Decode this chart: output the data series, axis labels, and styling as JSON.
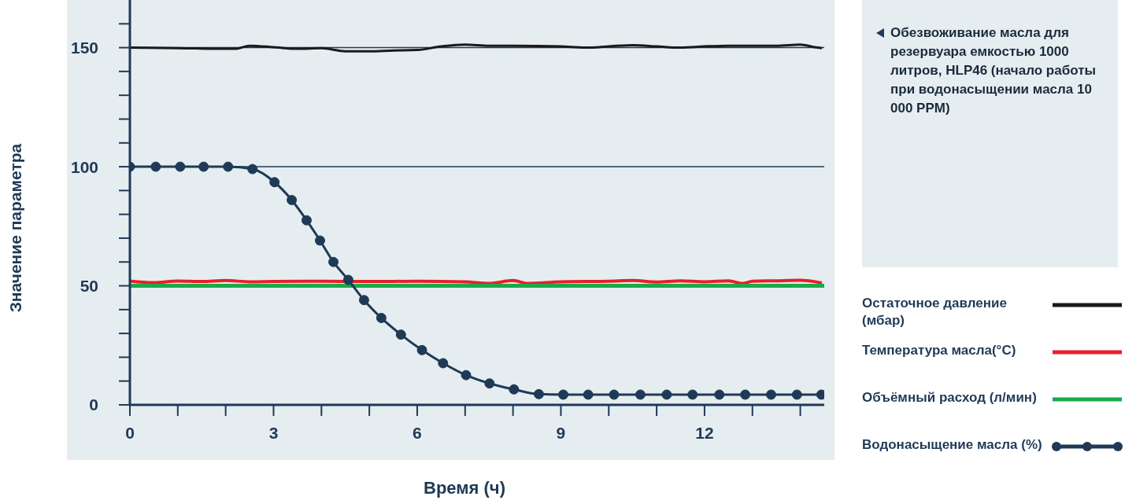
{
  "chart_data": {
    "type": "line",
    "xlabel": "Время (ч)",
    "ylabel": "Значение параметра",
    "annotations": [
      "Обезвоживание масла для резервуара емкостью 1000 литров, HLP46 (начало работы при водонасыщении масла 10 000 PPM)"
    ],
    "xlim": [
      0,
      14.5
    ],
    "xticks": [
      0,
      {
        "value": 1,
        "label": null
      },
      {
        "value": 2,
        "label": null
      },
      3,
      {
        "value": 4,
        "label": null
      },
      {
        "value": 5,
        "label": null
      },
      6,
      {
        "value": 7,
        "label": null
      },
      {
        "value": 8,
        "label": null
      },
      9,
      {
        "value": 10,
        "label": null
      },
      {
        "value": 11,
        "label": null
      },
      12,
      {
        "value": 13,
        "label": null
      },
      {
        "value": 14,
        "label": null
      }
    ],
    "ylim": [
      0,
      170
    ],
    "yticks": [
      0,
      {
        "value": 10,
        "label": null
      },
      {
        "value": 20,
        "label": null
      },
      {
        "value": 30,
        "label": null
      },
      {
        "value": 40,
        "label": null
      },
      50,
      {
        "value": 60,
        "label": null
      },
      {
        "value": 70,
        "label": null
      },
      {
        "value": 80,
        "label": null
      },
      {
        "value": 90,
        "label": null
      },
      100,
      {
        "value": 110,
        "label": null
      },
      {
        "value": 120,
        "label": null
      },
      {
        "value": 130,
        "label": null
      },
      {
        "value": 140,
        "label": null
      },
      150,
      {
        "value": 160,
        "label": null
      }
    ],
    "ref_lines": [
      {
        "axis": "y",
        "value": 100,
        "color": "#1f3a56"
      },
      {
        "axis": "y",
        "value": 150,
        "color": "#1f3a56"
      }
    ],
    "legend": "right",
    "line_style": "solid",
    "series": [
      {
        "name": "Остаточное давление (мбар)",
        "color": "#1a1a1a",
        "marker": "none",
        "x": [
          0,
          1,
          2,
          2.2,
          2.5,
          3,
          3.5,
          4,
          4.5,
          5,
          5.5,
          6,
          6.5,
          7,
          7.5,
          8,
          9,
          9.5,
          10.5,
          11,
          11.5,
          12,
          12.5,
          13,
          13.5,
          14,
          14.3,
          14.45
        ],
        "values": [
          150,
          149.8,
          149.5,
          149.5,
          150.8,
          150.2,
          149.5,
          149.8,
          148.5,
          148.5,
          148.8,
          149,
          150.5,
          151.3,
          150.8,
          150.8,
          150.5,
          150,
          151,
          150.5,
          150,
          150.5,
          150.8,
          150.8,
          150.8,
          151.3,
          150.2,
          149.8
        ]
      },
      {
        "name": "Температура масла(°C)",
        "color": "#e8202a",
        "marker": "none",
        "x": [
          0,
          0.5,
          1,
          1.5,
          2,
          2.5,
          3,
          4,
          5,
          6,
          7,
          7.5,
          8,
          8.3,
          9,
          10,
          10.5,
          11,
          11.5,
          12,
          12.5,
          12.8,
          13,
          13.5,
          14,
          14.45
        ],
        "values": [
          52,
          51.3,
          52,
          51.8,
          52.2,
          51.7,
          51.8,
          51.9,
          51.8,
          51.9,
          51.7,
          51,
          52.2,
          51,
          51.7,
          51.9,
          52.2,
          51.6,
          52.1,
          51.7,
          52.1,
          51,
          51.9,
          52.1,
          52.3,
          51.2
        ]
      },
      {
        "name": "Объёмный расход (л/мин)",
        "color": "#1aaa4a",
        "marker": "none",
        "x": [
          0,
          14.5
        ],
        "values": [
          50,
          50
        ]
      },
      {
        "name": "Водонасыщение масла (%)",
        "color": "#1f3a56",
        "marker": "circle",
        "x": [
          0,
          0.54,
          1.05,
          1.54,
          2.05,
          2.56,
          3.02,
          3.38,
          3.69,
          3.97,
          4.25,
          4.56,
          4.89,
          5.25,
          5.66,
          6.1,
          6.54,
          7.02,
          7.51,
          8.02,
          8.54,
          9.05,
          9.57,
          10.11,
          10.66,
          11.21,
          11.75,
          12.31,
          12.85,
          13.39,
          13.93,
          14.44
        ],
        "values": [
          100,
          100,
          100,
          100,
          100,
          99,
          93.5,
          86,
          77.5,
          69,
          60,
          52.5,
          44,
          36.5,
          29.5,
          23,
          17.5,
          12.5,
          9,
          6.5,
          4.5,
          4.3,
          4.3,
          4.3,
          4.3,
          4.3,
          4.3,
          4.3,
          4.3,
          4.3,
          4.3,
          4.3
        ]
      }
    ]
  }
}
